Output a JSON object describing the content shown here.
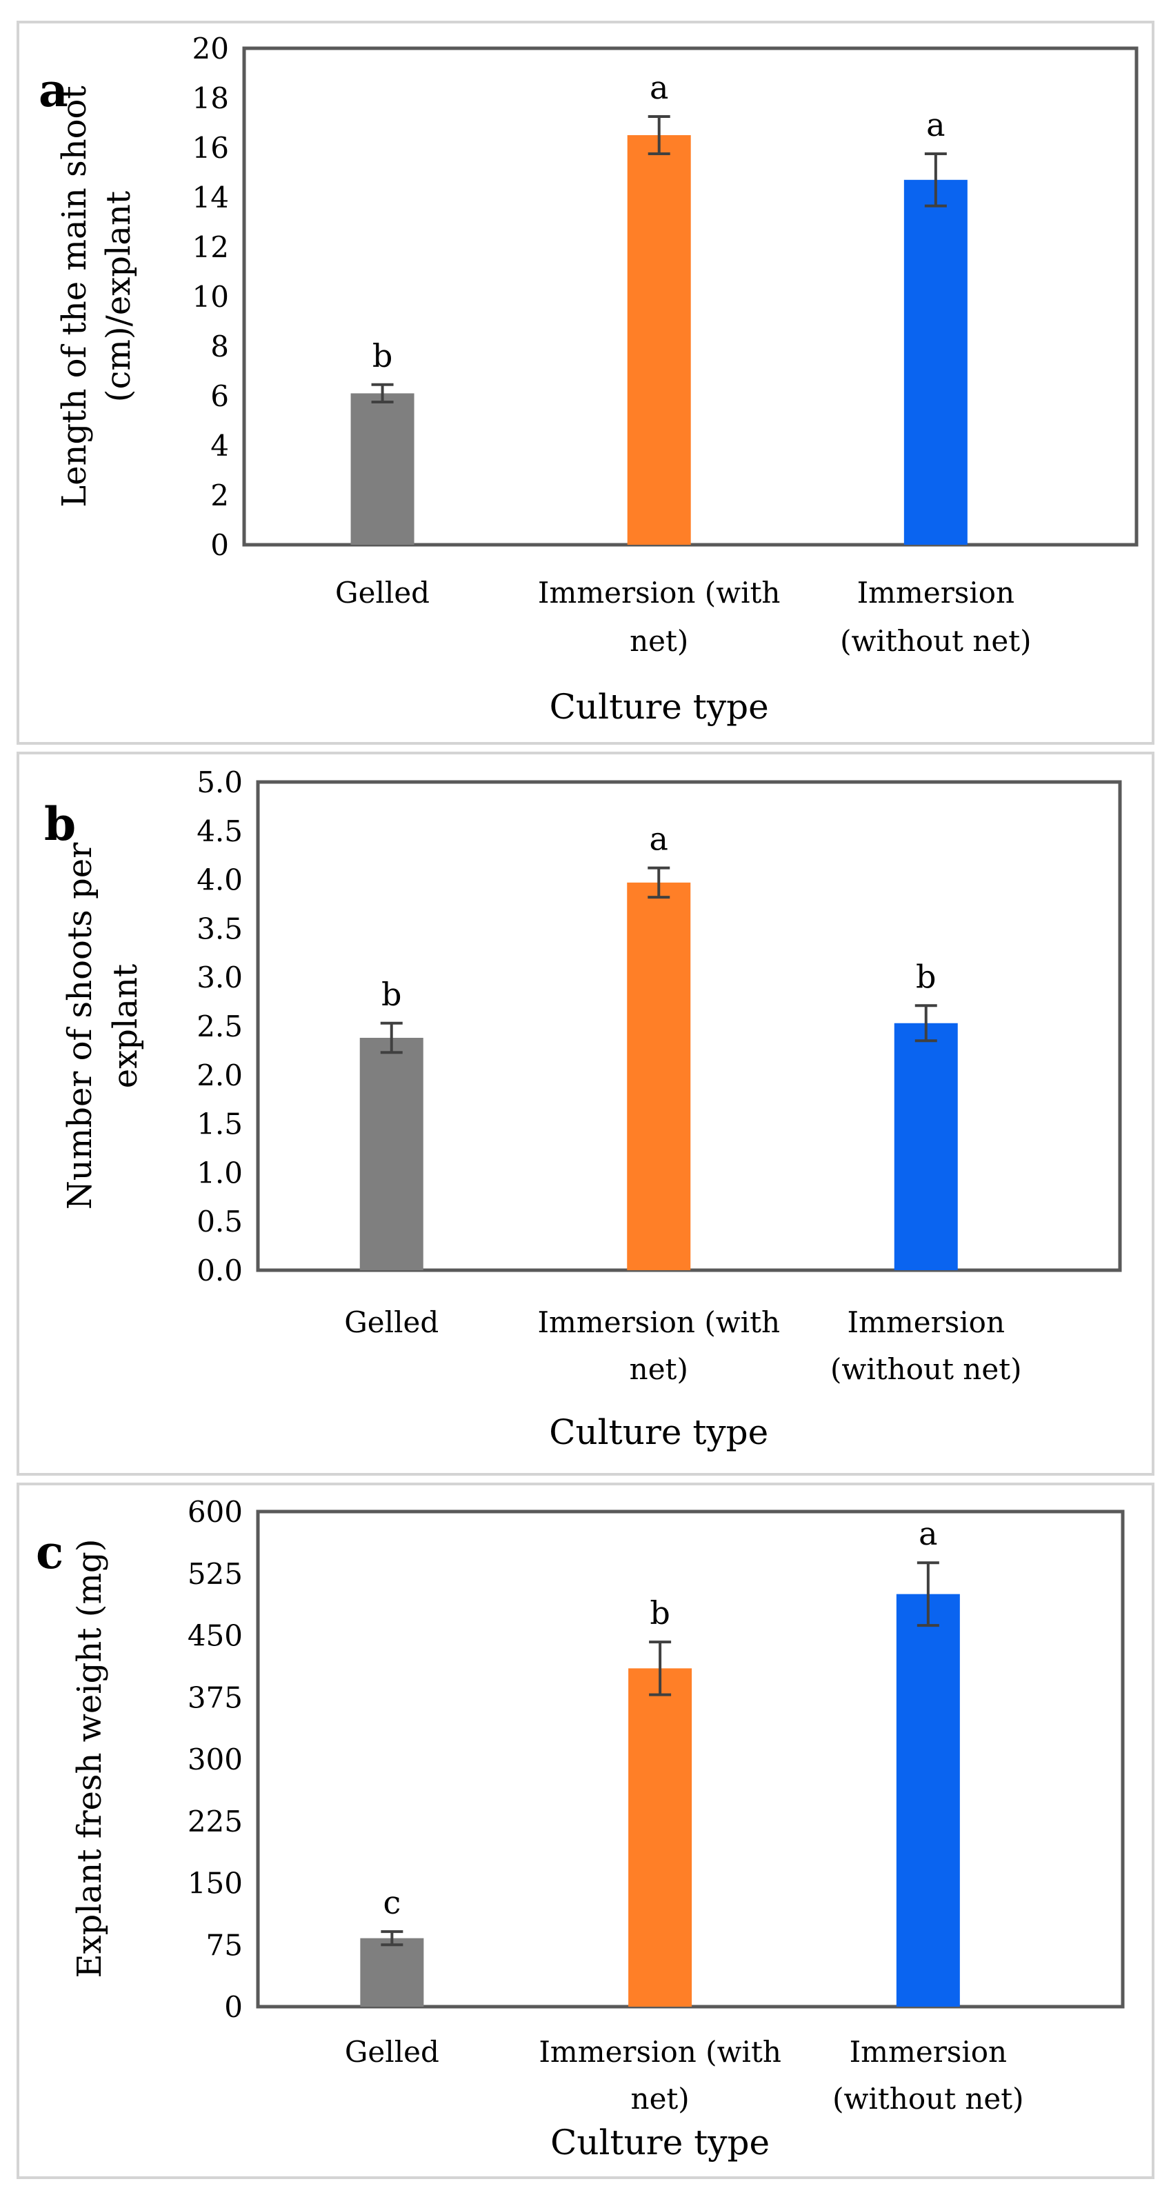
{
  "chart_data": [
    {
      "type": "bar",
      "panel_letter": "a",
      "categories": [
        "Gelled",
        "Immersion (with net)",
        "Immersion (without net)"
      ],
      "category_lines": [
        [
          "Gelled"
        ],
        [
          "Immersion (with",
          "net)"
        ],
        [
          "Immersion",
          "(without net)"
        ]
      ],
      "values": [
        6.1,
        16.5,
        14.7
      ],
      "errors": [
        0.35,
        0.75,
        1.05
      ],
      "letters": [
        "b",
        "a",
        "a"
      ],
      "colors": [
        "#7f7f7f",
        "#ff7f27",
        "#0a64f0"
      ],
      "xlabel": "Culture type",
      "ylabel_lines": [
        "Length of the main shoot",
        "(cm)/explant"
      ],
      "ylim": [
        0,
        20
      ],
      "yticks": [
        0,
        2,
        4,
        6,
        8,
        10,
        12,
        14,
        16,
        18,
        20
      ],
      "tick_labels": [
        "0",
        "2",
        "4",
        "6",
        "8",
        "10",
        "12",
        "14",
        "16",
        "18",
        "20"
      ]
    },
    {
      "type": "bar",
      "panel_letter": "b",
      "categories": [
        "Gelled",
        "Immersion (with net)",
        "Immersion (without net)"
      ],
      "category_lines": [
        [
          "Gelled"
        ],
        [
          "Immersion (with",
          "net)"
        ],
        [
          "Immersion",
          "(without net)"
        ]
      ],
      "values": [
        2.38,
        3.97,
        2.53
      ],
      "errors": [
        0.15,
        0.15,
        0.18
      ],
      "letters": [
        "b",
        "a",
        "b"
      ],
      "colors": [
        "#7f7f7f",
        "#ff7f27",
        "#0a64f0"
      ],
      "xlabel": "Culture type",
      "ylabel_lines": [
        "Number of shoots per",
        "explant"
      ],
      "ylim": [
        0,
        5
      ],
      "yticks": [
        0,
        0.5,
        1,
        1.5,
        2,
        2.5,
        3,
        3.5,
        4,
        4.5,
        5
      ],
      "tick_labels": [
        "0.0",
        "0.5",
        "1.0",
        "1.5",
        "2.0",
        "2.5",
        "3.0",
        "3.5",
        "4.0",
        "4.5",
        "5.0"
      ]
    },
    {
      "type": "bar",
      "panel_letter": "c",
      "categories": [
        "Gelled",
        "Immersion (with net)",
        "Immersion (without net)"
      ],
      "category_lines": [
        [
          "Gelled"
        ],
        [
          "Immersion (with",
          "net)"
        ],
        [
          "Immersion",
          "(without net)"
        ]
      ],
      "values": [
        83,
        410,
        500
      ],
      "errors": [
        8,
        32,
        38
      ],
      "letters": [
        "c",
        "b",
        "a"
      ],
      "colors": [
        "#7f7f7f",
        "#ff7f27",
        "#0a64f0"
      ],
      "xlabel": "Culture type",
      "ylabel_lines": [
        "Explant fresh weight (mg)"
      ],
      "ylim": [
        0,
        600
      ],
      "yticks": [
        0,
        75,
        150,
        225,
        300,
        375,
        450,
        525,
        600
      ],
      "tick_labels": [
        "0",
        "75",
        "150",
        "225",
        "300",
        "375",
        "450",
        "525",
        "600"
      ]
    }
  ]
}
